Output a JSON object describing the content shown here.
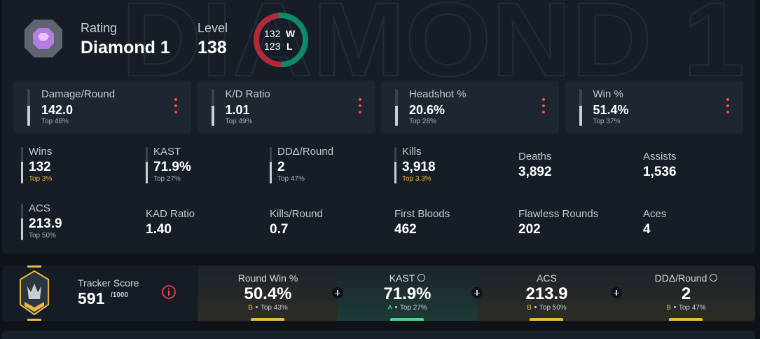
{
  "header": {
    "watermark": "DIAMOND 1",
    "rating_label": "Rating",
    "rank": "Diamond 1",
    "level_label": "Level",
    "level": "138",
    "wins": 132,
    "wins_letter": "W",
    "losses": 123,
    "losses_letter": "L"
  },
  "top_stats": [
    {
      "label": "Damage/Round",
      "value": "142.0",
      "rank": "Top 46%"
    },
    {
      "label": "K/D Ratio",
      "value": "1.01",
      "rank": "Top 49%"
    },
    {
      "label": "Headshot %",
      "value": "20.6%",
      "rank": "Top 28%"
    },
    {
      "label": "Win %",
      "value": "51.4%",
      "rank": "Top 37%"
    }
  ],
  "stats": [
    {
      "label": "Wins",
      "value": "132",
      "rank": "Top 3%",
      "rank_color": "#e8b940"
    },
    {
      "label": "KAST",
      "value": "71.9%",
      "rank": "Top 27%"
    },
    {
      "label": "DDΔ/Round",
      "value": "2",
      "rank": "Top 47%"
    },
    {
      "label": "Kills",
      "value": "3,918",
      "rank": "Top 3.3%",
      "rank_color": "#e8b940"
    },
    {
      "label": "Deaths",
      "value": "3,892"
    },
    {
      "label": "Assists",
      "value": "1,536"
    },
    {
      "label": "ACS",
      "value": "213.9",
      "rank": "Top 50%"
    },
    {
      "label": "KAD Ratio",
      "value": "1.40"
    },
    {
      "label": "Kills/Round",
      "value": "0.7"
    },
    {
      "label": "First Bloods",
      "value": "462"
    },
    {
      "label": "Flawless Rounds",
      "value": "202"
    },
    {
      "label": "Aces",
      "value": "4"
    }
  ],
  "tracker_score": {
    "label": "Tracker Score",
    "score": "591",
    "max": "/1000"
  },
  "score_cards": [
    {
      "label": "Round Win %",
      "value": "50.4%",
      "grade": "B",
      "rank": "Top 43%"
    },
    {
      "label": "KAST",
      "value": "71.9%",
      "grade": "A",
      "rank": "Top 27%",
      "info_icon": true
    },
    {
      "label": "ACS",
      "value": "213.9",
      "grade": "B",
      "rank": "Top 50%"
    },
    {
      "label": "DDΔ/Round",
      "value": "2",
      "grade": "B",
      "rank": "Top 47%",
      "info_icon": true
    }
  ]
}
